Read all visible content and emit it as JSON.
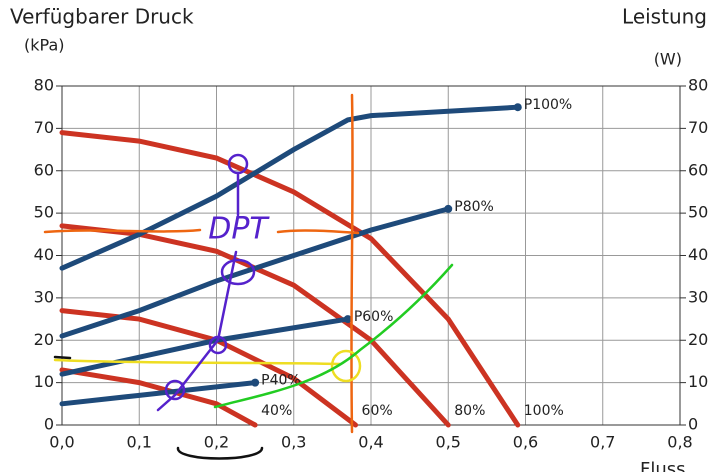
{
  "chart_data": {
    "type": "line",
    "title": "Verfügbarer Druck",
    "y_label": "(kPa)",
    "y2_title": "Leistung",
    "y2_label": "(W)",
    "x_label": "Fluss",
    "annotations": [
      "DPT"
    ],
    "xlim": [
      0,
      0.8
    ],
    "xticks": [
      {
        "value": 0,
        "label": "0,0"
      },
      {
        "value": 0.1,
        "label": "0,1"
      },
      {
        "value": 0.2,
        "label": "0,2"
      },
      {
        "value": 0.3,
        "label": "0,3"
      },
      {
        "value": 0.4,
        "label": "0,4"
      },
      {
        "value": 0.5,
        "label": "0,5"
      },
      {
        "value": 0.6,
        "label": "0,6"
      },
      {
        "value": 0.7,
        "label": "0,7"
      },
      {
        "value": 0.8,
        "label": "0,8"
      }
    ],
    "ylim": [
      0,
      80
    ],
    "yticks": [
      0,
      10,
      20,
      30,
      40,
      50,
      60,
      70,
      80
    ],
    "y2lim": [
      0,
      80
    ],
    "y2ticks": [
      0,
      10,
      20,
      30,
      40,
      50,
      60,
      70,
      80
    ],
    "grid": true,
    "series": [
      {
        "name": "100%",
        "color": "#cc3322",
        "x": [
          0,
          0.1,
          0.2,
          0.3,
          0.4,
          0.5,
          0.59
        ],
        "values": [
          69,
          67,
          63,
          55,
          44,
          25,
          0
        ]
      },
      {
        "name": "80%",
        "color": "#cc3322",
        "x": [
          0,
          0.1,
          0.2,
          0.3,
          0.4,
          0.45,
          0.5
        ],
        "values": [
          47,
          45,
          41,
          33,
          20,
          10,
          0
        ]
      },
      {
        "name": "60%",
        "color": "#cc3322",
        "x": [
          0,
          0.1,
          0.2,
          0.3,
          0.38
        ],
        "values": [
          27,
          25,
          20,
          11,
          0
        ]
      },
      {
        "name": "40%",
        "color": "#cc3322",
        "x": [
          0,
          0.1,
          0.2,
          0.25
        ],
        "values": [
          13,
          10,
          5,
          0
        ]
      },
      {
        "name": "P100%",
        "color": "#1e4a7a",
        "axis": "y2",
        "x": [
          0,
          0.1,
          0.2,
          0.3,
          0.37,
          0.4,
          0.59
        ],
        "values": [
          37,
          45,
          54,
          65,
          72,
          73,
          75
        ]
      },
      {
        "name": "P80%",
        "color": "#1e4a7a",
        "axis": "y2",
        "x": [
          0,
          0.1,
          0.2,
          0.3,
          0.4,
          0.5
        ],
        "values": [
          21,
          27,
          34,
          40,
          46,
          51
        ]
      },
      {
        "name": "P60%",
        "color": "#1e4a7a",
        "axis": "y2",
        "x": [
          0,
          0.1,
          0.2,
          0.37
        ],
        "values": [
          12,
          16,
          20,
          25
        ]
      },
      {
        "name": "P40%",
        "color": "#1e4a7a",
        "axis": "y2",
        "x": [
          0,
          0.1,
          0.25
        ],
        "values": [
          5,
          7,
          10
        ]
      }
    ]
  }
}
